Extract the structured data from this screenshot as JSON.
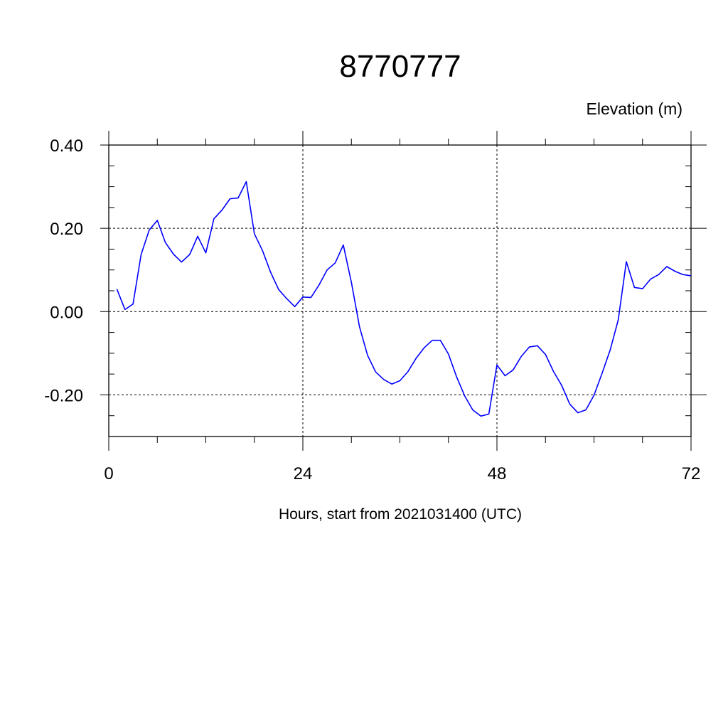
{
  "chart_data": {
    "type": "line",
    "title": "8770777",
    "ylabel": "Elevation (m)",
    "xlabel": "Hours, start from 2021031400 (UTC)",
    "xlim": [
      0,
      72
    ],
    "ylim": [
      -0.3,
      0.4
    ],
    "x_ticks": [
      0,
      24,
      48,
      72
    ],
    "x_tick_labels": [
      "0",
      "24",
      "48",
      "72"
    ],
    "y_ticks": [
      0.4,
      0.2,
      0.0,
      -0.2
    ],
    "y_tick_labels": [
      "0.40",
      "0.20",
      "0.00",
      "-0.20"
    ],
    "grid": true,
    "line_color": "#0000ff",
    "series": [
      {
        "x": [
          1,
          2,
          3,
          4,
          5,
          6,
          7,
          8,
          9,
          10,
          11,
          12,
          13,
          14,
          15,
          16,
          17,
          18,
          19,
          20,
          21,
          22,
          23,
          24,
          25,
          26,
          27,
          28,
          29,
          30,
          31,
          32,
          33,
          34,
          35,
          36,
          37,
          38,
          39,
          40,
          41,
          42,
          43,
          44,
          45,
          46,
          47,
          48,
          49,
          50,
          51,
          52,
          53,
          54,
          55,
          56,
          57,
          58,
          59,
          60,
          61,
          62,
          63,
          64,
          65,
          66,
          67,
          68,
          69,
          70,
          71,
          72
        ],
        "values": [
          0.054,
          0.005,
          0.018,
          0.137,
          0.196,
          0.219,
          0.166,
          0.138,
          0.119,
          0.137,
          0.181,
          0.141,
          0.223,
          0.244,
          0.271,
          0.273,
          0.312,
          0.187,
          0.147,
          0.095,
          0.053,
          0.031,
          0.012,
          0.035,
          0.034,
          0.064,
          0.1,
          0.117,
          0.16,
          0.07,
          -0.036,
          -0.105,
          -0.145,
          -0.163,
          -0.174,
          -0.166,
          -0.144,
          -0.112,
          -0.087,
          -0.069,
          -0.069,
          -0.102,
          -0.156,
          -0.202,
          -0.236,
          -0.251,
          -0.246,
          -0.128,
          -0.154,
          -0.14,
          -0.108,
          -0.085,
          -0.082,
          -0.103,
          -0.144,
          -0.177,
          -0.222,
          -0.243,
          -0.236,
          -0.201,
          -0.148,
          -0.092,
          -0.02,
          0.12,
          0.058,
          0.055,
          0.078,
          0.089,
          0.108,
          0.097,
          0.089,
          0.086
        ]
      }
    ]
  }
}
